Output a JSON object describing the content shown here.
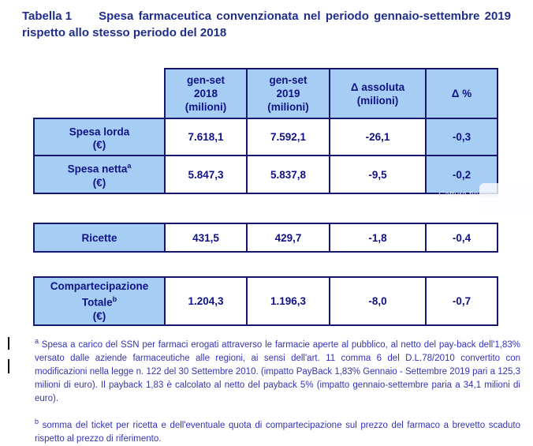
{
  "title": {
    "label": "Tabella 1",
    "text": "Spesa farmaceutica convenzionata nel periodo gennaio-settembre 2019 rispetto allo stesso periodo del 2018"
  },
  "colors": {
    "cell_fill": "#A6CEF5",
    "table_border": "#16176F",
    "table_text": "#101285",
    "title_text": "#1F2E8C",
    "footnote_text": "#3434B4"
  },
  "table": {
    "headers": [
      "gen-set\n2018\n(milioni)",
      "gen-set\n2019\n(milioni)",
      "Δ assoluta\n(milioni)",
      "Δ %"
    ],
    "rows": [
      {
        "name": "Spesa lorda",
        "sup": "",
        "unit": "(€)",
        "v2018": "7.618,1",
        "v2019": "7.592,1",
        "delta": "-26,1",
        "pct": "-0,3"
      },
      {
        "name": "Spesa netta",
        "sup": "a",
        "unit": "(€)",
        "v2018": "5.847,3",
        "v2019": "5.837,8",
        "delta": "-9,5",
        "pct": "-0,2"
      },
      {
        "name": "Ricette",
        "sup": "",
        "unit": "",
        "v2018": "431,5",
        "v2019": "429,7",
        "delta": "-1,8",
        "pct": "-0,4"
      },
      {
        "name": "Compartecipazione Totale",
        "sup": "b",
        "unit": "(€)",
        "v2018": "1.204,3",
        "v2019": "1.196,3",
        "delta": "-8,0",
        "pct": "-0,7"
      }
    ]
  },
  "footnotes": [
    {
      "marker": "a",
      "text": "Spesa a carico del SSN per farmaci erogati attraverso le farmacie aperte al pubblico, al netto del pay-back dell'1,83% versato dalle aziende farmaceutiche alle regioni, ai sensi dell'art. 11 comma 6 del D.L.78/2010 convertito con modificazioni nella legge n. 122 del 30 Settembre 2010.  (impatto PayBack 1,83% Gennaio - Settembre 2019 pari a 125,3 milioni di euro). Il payback 1,83 è calcolato al netto del payback 5% (impatto gennaio-settembre paria a 34,1 milioni di euro)."
    },
    {
      "marker": "b",
      "text": "somma del ticket per ricetta e dell'eventuale quota di compartecipazione sul prezzo del farmaco a brevetto scaduto rispetto al prezzo di riferimento."
    }
  ],
  "watermark": {
    "text": "Cattura finestra"
  }
}
